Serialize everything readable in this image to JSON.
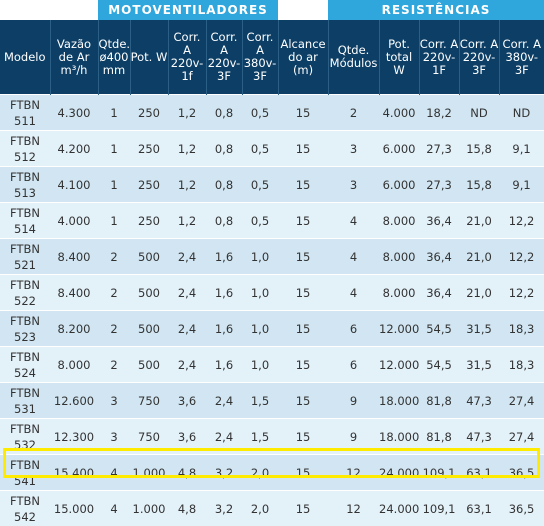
{
  "groups": {
    "motoventiladores": "MOTOVENTILADORES",
    "resistencias": "RESISTÊNCIAS"
  },
  "columns": [
    "Modelo",
    "Vazão de Ar m³/h",
    "Qtde. ø400 mm",
    "Pot. W",
    "Corr. A 220v-1f",
    "Corr. A 220v-3F",
    "Corr. A 380v-3F",
    "Alcance do ar (m)",
    "Qtde. Módulos",
    "Pot. total W",
    "Corr. A 220v-1F",
    "Corr. A 220v-3F",
    "Corr. A 380v-3F"
  ],
  "rows": [
    [
      "FTBN 511",
      "4.300",
      "1",
      "250",
      "1,2",
      "0,8",
      "0,5",
      "15",
      "2",
      "4.000",
      "18,2",
      "ND",
      "ND"
    ],
    [
      "FTBN 512",
      "4.200",
      "1",
      "250",
      "1,2",
      "0,8",
      "0,5",
      "15",
      "3",
      "6.000",
      "27,3",
      "15,8",
      "9,1"
    ],
    [
      "FTBN 513",
      "4.100",
      "1",
      "250",
      "1,2",
      "0,8",
      "0,5",
      "15",
      "3",
      "6.000",
      "27,3",
      "15,8",
      "9,1"
    ],
    [
      "FTBN 514",
      "4.000",
      "1",
      "250",
      "1,2",
      "0,8",
      "0,5",
      "15",
      "4",
      "8.000",
      "36,4",
      "21,0",
      "12,2"
    ],
    [
      "FTBN 521",
      "8.400",
      "2",
      "500",
      "2,4",
      "1,6",
      "1,0",
      "15",
      "4",
      "8.000",
      "36,4",
      "21,0",
      "12,2"
    ],
    [
      "FTBN 522",
      "8.400",
      "2",
      "500",
      "2,4",
      "1,6",
      "1,0",
      "15",
      "4",
      "8.000",
      "36,4",
      "21,0",
      "12,2"
    ],
    [
      "FTBN 523",
      "8.200",
      "2",
      "500",
      "2,4",
      "1,6",
      "1,0",
      "15",
      "6",
      "12.000",
      "54,5",
      "31,5",
      "18,3"
    ],
    [
      "FTBN 524",
      "8.000",
      "2",
      "500",
      "2,4",
      "1,6",
      "1,0",
      "15",
      "6",
      "12.000",
      "54,5",
      "31,5",
      "18,3"
    ],
    [
      "FTBN 531",
      "12.600",
      "3",
      "750",
      "3,6",
      "2,4",
      "1,5",
      "15",
      "9",
      "18.000",
      "81,8",
      "47,3",
      "27,4"
    ],
    [
      "FTBN 532",
      "12.300",
      "3",
      "750",
      "3,6",
      "2,4",
      "1,5",
      "15",
      "9",
      "18.000",
      "81,8",
      "47,3",
      "27,4"
    ],
    [
      "FTBN 541",
      "15.400",
      "4",
      "1.000",
      "4,8",
      "3,2",
      "2,0",
      "15",
      "12",
      "24.000",
      "109,1",
      "63,1",
      "36,5"
    ],
    [
      "FTBN 542",
      "15.000",
      "4",
      "1.000",
      "4,8",
      "3,2",
      "2,0",
      "15",
      "12",
      "24.000",
      "109,1",
      "63,1",
      "36,5"
    ]
  ],
  "highlighted_row": "FTBN 541",
  "colors": {
    "group_header": "#2fa6dc",
    "column_header": "#0d3f66",
    "row_odd": "#d1e6f2",
    "row_even": "#e3f1f9",
    "highlight": "#ffeb00"
  }
}
